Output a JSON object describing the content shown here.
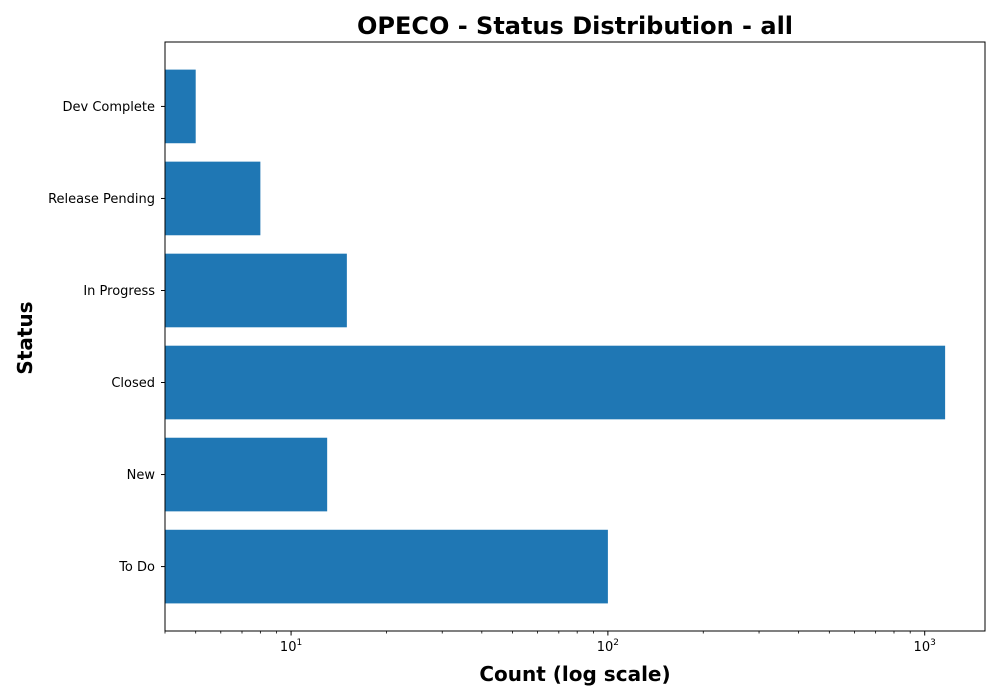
{
  "chart_data": {
    "type": "bar",
    "orientation": "horizontal",
    "title": "OPECO - Status Distribution - all",
    "xlabel": "Count (log scale)",
    "ylabel": "Status",
    "xscale": "log",
    "xlim": [
      4,
      1550
    ],
    "x_ticks": [
      {
        "value": 10,
        "base": "10",
        "exp": "1"
      },
      {
        "value": 100,
        "base": "10",
        "exp": "2"
      },
      {
        "value": 1000,
        "base": "10",
        "exp": "3"
      }
    ],
    "categories": [
      "To Do",
      "New",
      "Closed",
      "In Progress",
      "Release Pending",
      "Dev Complete"
    ],
    "values": [
      100,
      13,
      1160,
      15,
      8,
      5
    ],
    "bar_color": "#1f77b4",
    "grid": false,
    "legend": false
  }
}
